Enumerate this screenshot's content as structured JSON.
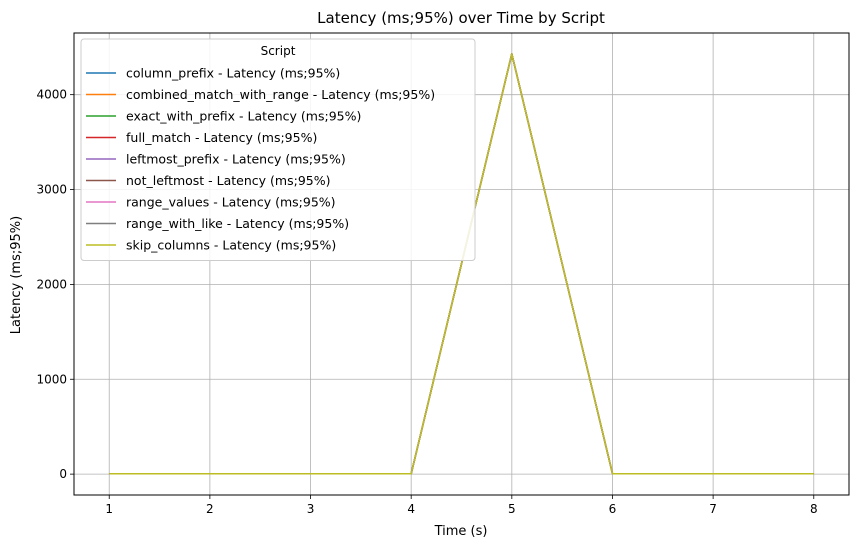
{
  "chart_data": {
    "type": "line",
    "title": "Latency (ms;95%) over Time by Script",
    "xlabel": "Time (s)",
    "ylabel": "Latency (ms;95%)",
    "xlim": [
      0.65,
      8.35
    ],
    "ylim": [
      -220,
      4650
    ],
    "x_ticks": [
      1,
      2,
      3,
      4,
      5,
      6,
      7,
      8
    ],
    "y_ticks": [
      0,
      1000,
      2000,
      3000,
      4000
    ],
    "grid": true,
    "legend": {
      "title": "Script",
      "placement": "upper-left"
    },
    "x": [
      1,
      2,
      3,
      4,
      5,
      6,
      7,
      8
    ],
    "series": [
      {
        "name": "column_prefix - Latency (ms;95%)",
        "color": "#1f77b4",
        "values": [
          5,
          5,
          5,
          5,
          4430,
          5,
          5,
          5
        ]
      },
      {
        "name": "combined_match_with_range - Latency (ms;95%)",
        "color": "#ff7f0e",
        "values": [
          5,
          5,
          5,
          5,
          4430,
          5,
          5,
          5
        ]
      },
      {
        "name": "exact_with_prefix - Latency (ms;95%)",
        "color": "#2ca02c",
        "values": [
          5,
          5,
          5,
          5,
          4430,
          5,
          5,
          5
        ]
      },
      {
        "name": "full_match - Latency (ms;95%)",
        "color": "#d62728",
        "values": [
          5,
          5,
          5,
          5,
          4430,
          5,
          5,
          5
        ]
      },
      {
        "name": "leftmost_prefix - Latency (ms;95%)",
        "color": "#9467bd",
        "values": [
          5,
          5,
          5,
          5,
          4430,
          5,
          5,
          5
        ]
      },
      {
        "name": "not_leftmost - Latency (ms;95%)",
        "color": "#8c564b",
        "values": [
          5,
          5,
          5,
          5,
          4430,
          5,
          5,
          5
        ]
      },
      {
        "name": "range_values - Latency (ms;95%)",
        "color": "#e377c2",
        "values": [
          5,
          5,
          5,
          5,
          4430,
          5,
          5,
          5
        ]
      },
      {
        "name": "range_with_like - Latency (ms;95%)",
        "color": "#7f7f7f",
        "values": [
          5,
          5,
          5,
          5,
          4430,
          5,
          5,
          5
        ]
      },
      {
        "name": "skip_columns - Latency (ms;95%)",
        "color": "#bcbd22",
        "values": [
          5,
          5,
          5,
          5,
          4430,
          5,
          5,
          5
        ]
      }
    ]
  }
}
